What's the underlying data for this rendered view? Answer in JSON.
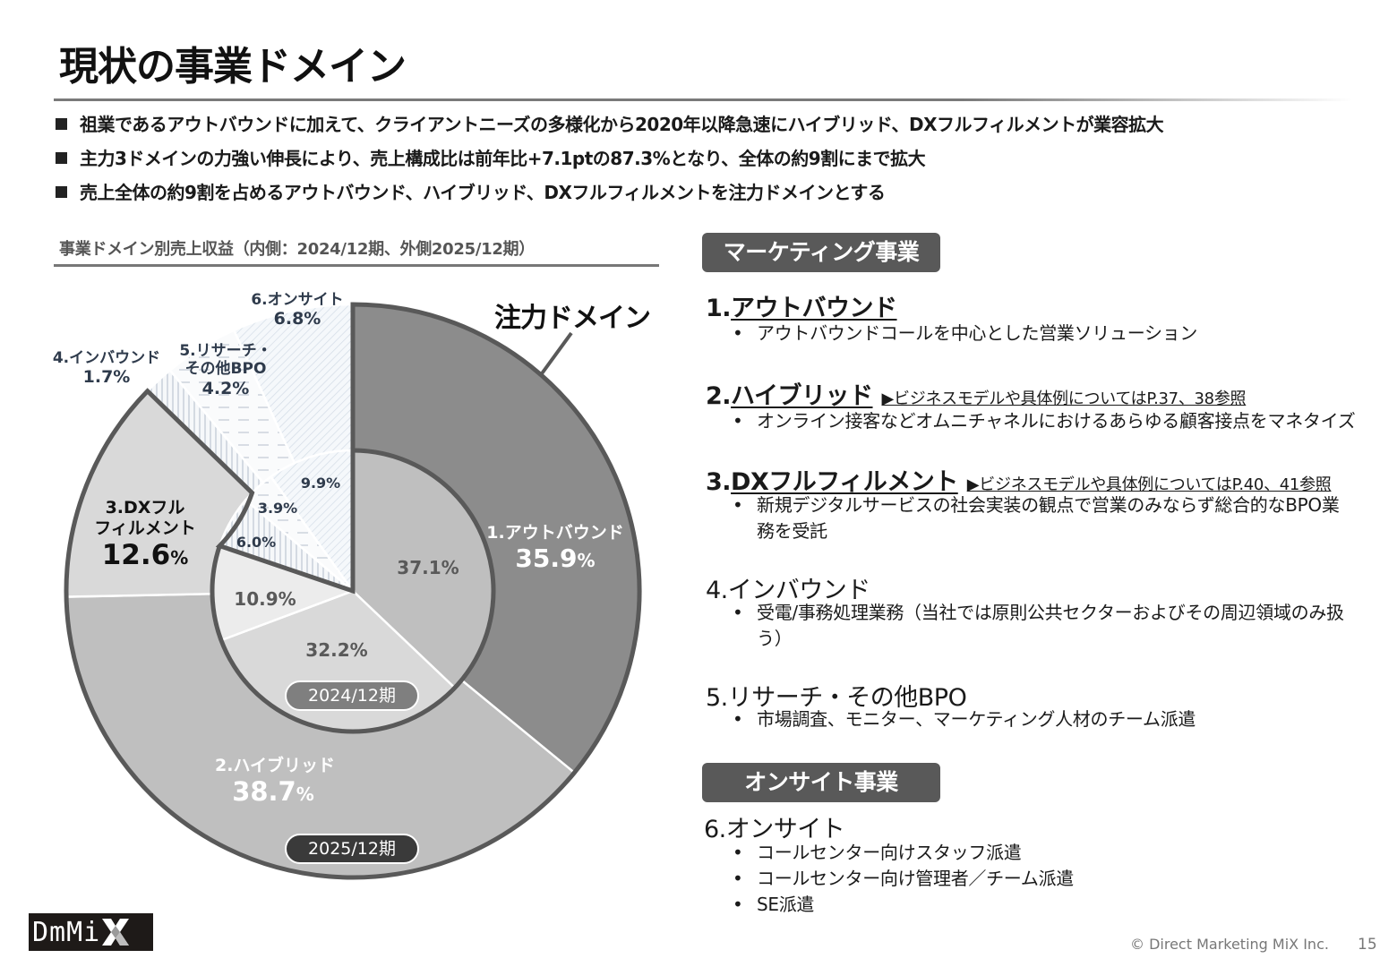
{
  "slide": {
    "title": "現状の事業ドメイン",
    "page_number": "15",
    "copyright": "© Direct Marketing MiX Inc.",
    "logo_text": "DmMi"
  },
  "bullets": [
    "祖業であるアウトバウンドに加えて、クライアントニーズの多様化から2020年以降急速にハイブリッド、DXフルフィルメントが業容拡大",
    "主力3ドメインの力強い伸長により、売上構成比は前年比+7.1ptの87.3%となり、全体の約9割にまで拡大",
    "売上全体の約9割を占めるアウトバウンド、ハイブリッド、DXフルフィルメントを注力ドメインとする"
  ],
  "chart": {
    "caption": "事業ドメイン別売上収益（内側：2024/12期、外側2025/12期）",
    "focus_label": "注力ドメイン",
    "inner_period": "2024/12期",
    "outer_period": "2025/12期",
    "outer_labels": {
      "d1_name": "1.アウトバウンド",
      "d1_value": "35.9",
      "d1_pct": "%",
      "d2_name": "2.ハイブリッド",
      "d2_value": "38.7",
      "d2_pct": "%",
      "d3_name_1": "3.DXフル",
      "d3_name_2": "フィルメント",
      "d3_value": "12.6",
      "d3_pct": "%",
      "d4_name": "4.インバウンド",
      "d4_value": "1.7%",
      "d5_name_1": "5.リサーチ・",
      "d5_name_2": "その他BPO",
      "d5_value": "4.2%",
      "d6_name": "6.オンサイト",
      "d6_value": "6.8%"
    },
    "inner_labels": {
      "d1": "37.1%",
      "d2": "32.2%",
      "d3": "10.9%",
      "d4": "6.0%",
      "d5": "3.9%",
      "d6": "9.9%"
    }
  },
  "chart_data": {
    "type": "pie",
    "title": "事業ドメイン別売上収益（内側：2024/12期、外側2025/12期）",
    "variant": "nested donut",
    "categories": [
      "1.アウトバウンド",
      "2.ハイブリッド",
      "3.DXフルフィルメント",
      "4.インバウンド",
      "5.リサーチ・その他BPO",
      "6.オンサイト"
    ],
    "series": [
      {
        "name": "2024/12期 (inner)",
        "values": [
          37.1,
          32.2,
          10.9,
          6.0,
          3.9,
          9.9
        ]
      },
      {
        "name": "2025/12期 (outer)",
        "values": [
          35.9,
          38.7,
          12.6,
          1.7,
          4.2,
          6.8
        ]
      }
    ],
    "annotations": [
      "注力ドメイン (1–3)"
    ],
    "colors": {
      "d1": "#8c8c8c",
      "d2": "#bfbfbf",
      "d3": "#d9d9d9",
      "d4_6": "hatched light blue-gray",
      "outline": "#595959"
    }
  },
  "sections": {
    "marketing": {
      "badge": "マーケティング事業",
      "items": [
        {
          "num": "1.",
          "name": "アウトバウンド",
          "ref": "",
          "desc": [
            "アウトバウンドコールを中心とした営業ソリューション"
          ]
        },
        {
          "num": "2.",
          "name": "ハイブリッド",
          "ref": "▶ビジネスモデルや具体例についてはP.37、38参照",
          "desc": [
            "オンライン接客などオムニチャネルにおけるあらゆる顧客接点をマネタイズ"
          ]
        },
        {
          "num": "3.",
          "name": "DXフルフィルメント",
          "ref": "▶ビジネスモデルや具体例についてはP.40、41参照",
          "desc": [
            "新規デジタルサービスの社会実装の観点で営業のみならず総合的なBPO業務を受託"
          ]
        },
        {
          "num": "4.",
          "name": "インバウンド",
          "ref": "",
          "desc": [
            "受電/事務処理業務（当社では原則公共セクターおよびその周辺領域のみ扱う）"
          ]
        },
        {
          "num": "5.",
          "name": "リサーチ・その他BPO",
          "ref": "",
          "desc": [
            "市場調査、モニター、マーケティング人材のチーム派遣"
          ]
        }
      ]
    },
    "onsite": {
      "badge": "オンサイト事業",
      "items": [
        {
          "num": "6.",
          "name": "オンサイト",
          "desc": [
            "コールセンター向けスタッフ派遣",
            "コールセンター向け管理者／チーム派遣",
            "SE派遣"
          ]
        }
      ]
    }
  }
}
